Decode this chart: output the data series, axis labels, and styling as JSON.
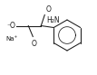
{
  "bg_color": "#ffffff",
  "line_color": "#1a1a1a",
  "text_color": "#1a1a1a",
  "fig_width": 1.07,
  "fig_height": 0.83,
  "dpi": 100,
  "nh2_label": "H₂N",
  "na_label": "Na⁺",
  "o_minus_label": "⁻O"
}
